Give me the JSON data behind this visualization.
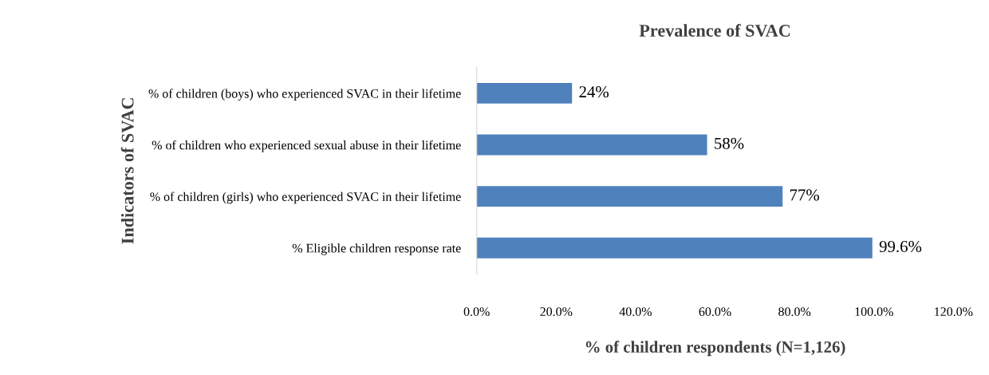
{
  "chart_data": {
    "type": "bar",
    "orientation": "horizontal",
    "title": "Prevalence of SVAC",
    "xlabel": "% of children respondents (N=1,126)",
    "ylabel": "Indicators of SVAC",
    "categories": [
      "% of children (boys) who experienced SVAC in their lifetime",
      "% of children who experienced sexual abuse in their lifetime",
      "% of children (girls) who experienced SVAC in their lifetime",
      "% Eligible children response rate"
    ],
    "values": [
      24,
      58,
      77,
      99.6
    ],
    "value_labels": [
      "24%",
      "58%",
      "77%",
      "99.6%"
    ],
    "color": "#4f81bd",
    "xlim": [
      0,
      120
    ],
    "xticks": [
      {
        "value": 0,
        "label": "0.0%"
      },
      {
        "value": 20,
        "label": "20.0%"
      },
      {
        "value": 40,
        "label": "40.0%"
      },
      {
        "value": 60,
        "label": "60.0%"
      },
      {
        "value": 80,
        "label": "80.0%"
      },
      {
        "value": 100,
        "label": "100.0%"
      },
      {
        "value": 120,
        "label": "120.0%"
      }
    ],
    "grid": false,
    "legend": false
  }
}
